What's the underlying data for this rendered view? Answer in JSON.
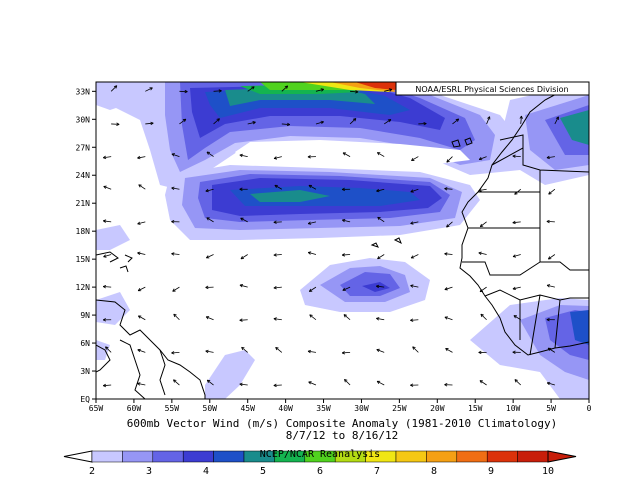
{
  "map": {
    "credit": "NOAA/ESRL Physical Sciences Division",
    "lat_labels": [
      "33N",
      "30N",
      "27N",
      "24N",
      "21N",
      "18N",
      "15N",
      "12N",
      "9N",
      "6N",
      "3N",
      "EQ"
    ],
    "lon_labels": [
      "65W",
      "60W",
      "55W",
      "50W",
      "45W",
      "40W",
      "35W",
      "30W",
      "25W",
      "20W",
      "15W",
      "10W",
      "5W",
      "0"
    ],
    "lat_range": [
      0,
      34
    ],
    "lon_range": [
      -65,
      0
    ]
  },
  "caption": {
    "line1": "600mb Vector Wind (m/s) Composite Anomaly (1981-2010 Climatology)",
    "line2": "8/7/12  to 8/16/12"
  },
  "colorbar": {
    "source_label": "NCEP/NCAR Reanalysis",
    "ticks": [
      "2",
      "3",
      "4",
      "5",
      "6",
      "7",
      "8",
      "9",
      "10"
    ],
    "colors": [
      "#c8c8ff",
      "#9696f5",
      "#6464e6",
      "#3c3cd2",
      "#1e50c8",
      "#198c8c",
      "#14b450",
      "#50d21e",
      "#b4dc14",
      "#f0e614",
      "#f5c814",
      "#f5a014",
      "#f06e14",
      "#dc320a",
      "#c81e0a"
    ]
  },
  "colors": {
    "land_outline": "#000000",
    "arrow": "#000000"
  }
}
